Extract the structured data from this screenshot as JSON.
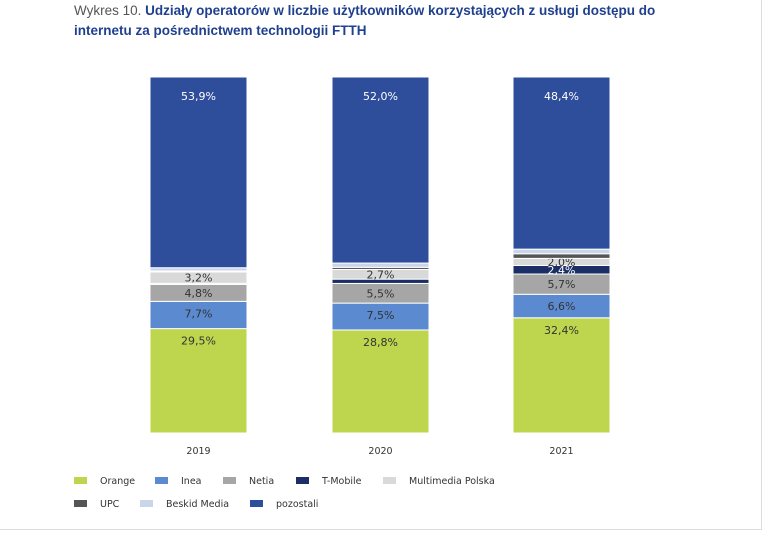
{
  "title": {
    "prefix": "Wykres 10. ",
    "main": "Udziały operatorów w liczbie użytkowników korzystających z usługi dostępu do internetu za pośrednictwem technologii FTTH"
  },
  "chart_data": {
    "type": "bar",
    "stacked": true,
    "title": "Udziały operatorów w liczbie użytkowników korzystających z usługi dostępu do internetu za pośrednictwem technologii FTTH",
    "categories": [
      "2019",
      "2020",
      "2021"
    ],
    "ylim": [
      0,
      100
    ],
    "grid": false,
    "legend_position": "bottom",
    "series": [
      {
        "name": "Orange",
        "color": "#bed64e",
        "values": [
          29.5,
          28.8,
          32.4
        ],
        "labels": [
          "29,5%",
          "28,8%",
          "32,4%"
        ]
      },
      {
        "name": "Inea",
        "color": "#5b8ad0",
        "values": [
          7.7,
          7.5,
          6.6
        ],
        "labels": [
          "7,7%",
          "7,5%",
          "6,6%"
        ]
      },
      {
        "name": "Netia",
        "color": "#a6a6a6",
        "values": [
          4.8,
          5.5,
          5.7
        ],
        "labels": [
          "4,8%",
          "5,5%",
          "5,7%"
        ]
      },
      {
        "name": "T-Mobile",
        "color": "#1b2f66",
        "values": [
          0.3,
          1.2,
          2.4
        ],
        "labels": [
          "",
          "",
          "2,4%"
        ]
      },
      {
        "name": "Multimedia Polska",
        "color": "#d9d9d9",
        "values": [
          3.2,
          2.7,
          2.0
        ],
        "labels": [
          "3,2%",
          "2,7%",
          "2,0%"
        ]
      },
      {
        "name": "UPC",
        "color": "#555555",
        "values": [
          0.3,
          0.6,
          1.3
        ],
        "labels": [
          "",
          "",
          ""
        ]
      },
      {
        "name": "Beskid Media",
        "color": "#c9d5ea",
        "values": [
          0.9,
          1.2,
          1.3
        ],
        "labels": [
          "",
          "",
          ""
        ]
      },
      {
        "name": "pozostali",
        "color": "#2e4d9b",
        "values": [
          53.9,
          52.0,
          48.4
        ],
        "labels": [
          "53,9%",
          "52,0%",
          "48,4%"
        ]
      }
    ]
  }
}
